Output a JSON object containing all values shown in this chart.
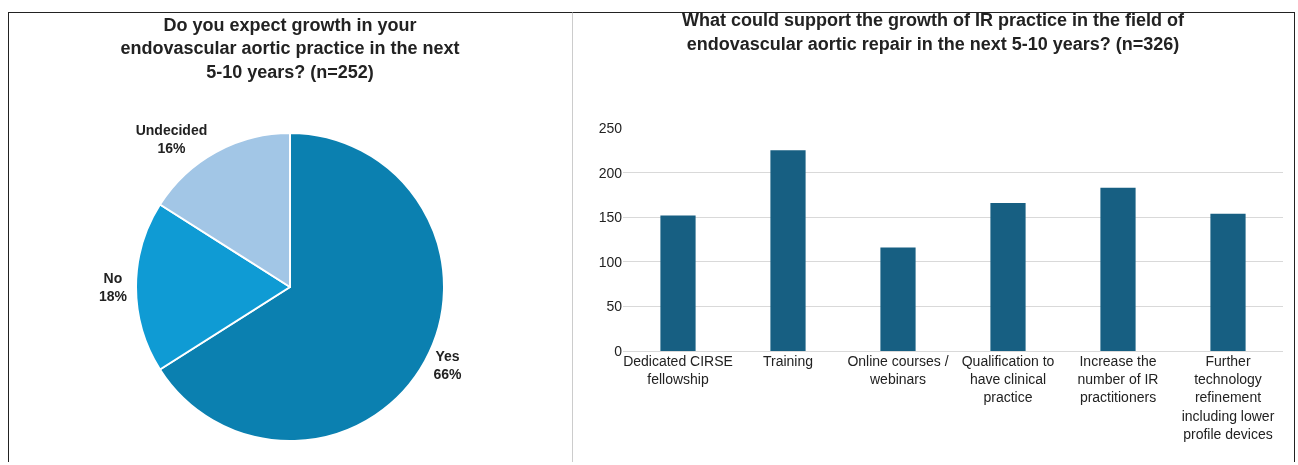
{
  "chart_data": [
    {
      "type": "pie",
      "title": "Do you expect growth in your endovascular aortic practice in the next 5-10 years? (n=252)",
      "categories": [
        "Yes",
        "No",
        "Undecided"
      ],
      "values": [
        66,
        18,
        16
      ],
      "value_labels": [
        "66%",
        "18%",
        "16%"
      ],
      "colors": [
        "#0b80b0",
        "#0f9bd4",
        "#a2c6e6"
      ],
      "legend": false
    },
    {
      "type": "bar",
      "title": "What could support the growth of IR practice in the field of endovascular aortic repair in the next 5-10 years? (n=326)",
      "categories": [
        "Dedicated CIRSE fellowship",
        "Training",
        "Online courses / webinars",
        "Qualification to have clinical practice",
        "Increase the number of IR practitioners",
        "Further technology refinement including lower profile devices"
      ],
      "values": [
        152,
        225,
        116,
        166,
        183,
        154
      ],
      "color": "#175f82",
      "ylim": [
        0,
        250
      ],
      "yticks": [
        0,
        50,
        100,
        150,
        200,
        250
      ],
      "grid": "y",
      "legend": false
    }
  ]
}
